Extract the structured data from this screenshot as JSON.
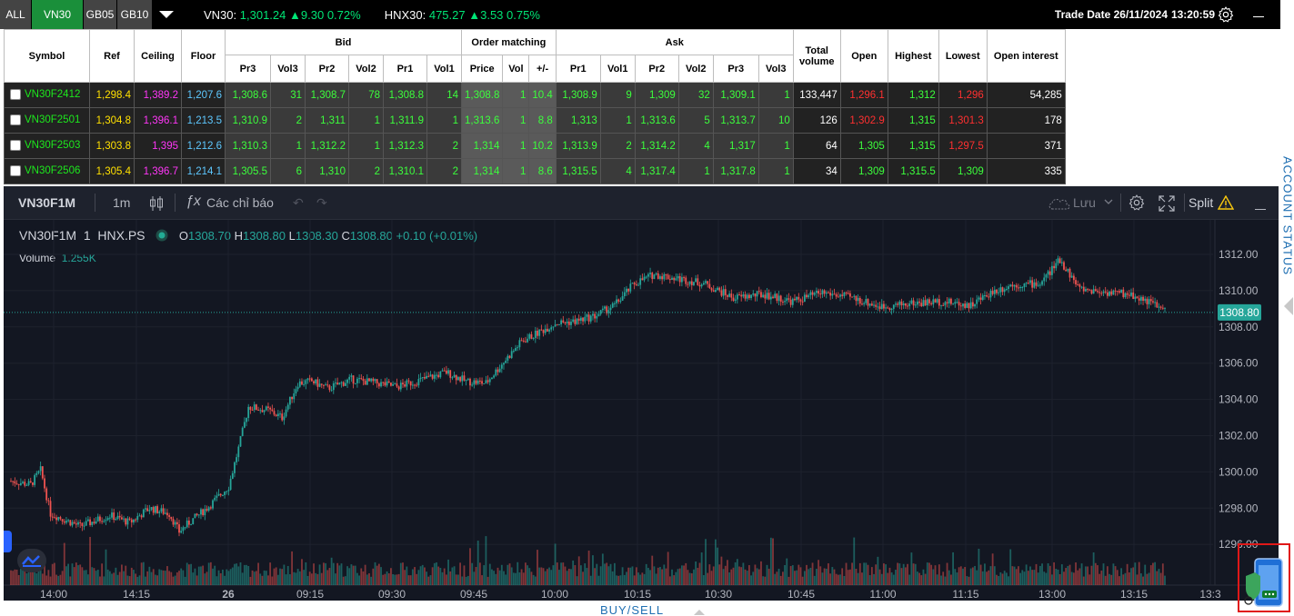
{
  "topbar": {
    "tabs": [
      {
        "label": "ALL"
      },
      {
        "label": "VN30"
      },
      {
        "label": "GB05"
      },
      {
        "label": "GB10"
      }
    ],
    "active_tab": "VN30",
    "vn30": {
      "label": "VN30:",
      "value": "1,301.24",
      "change": "9.30",
      "pct": "0.72%"
    },
    "hnx30": {
      "label": "HNX30:",
      "value": "475.27",
      "change": "3.53",
      "pct": "0.75%"
    },
    "trade_date": "Trade Date 26/11/2024",
    "time": "13:20:59"
  },
  "board": {
    "headers": {
      "symbol": "Symbol",
      "ref": "Ref",
      "ceiling": "Ceiling",
      "floor": "Floor",
      "bid": "Bid",
      "order_matching": "Order matching",
      "ask": "Ask",
      "total_volume": "Total volume",
      "open": "Open",
      "highest": "Highest",
      "lowest": "Lowest",
      "open_interest": "Open interest"
    },
    "sub_headers": {
      "bid": [
        "Pr3",
        "Vol3",
        "Pr2",
        "Vol2",
        "Pr1",
        "Vol1"
      ],
      "match": [
        "Price",
        "Vol",
        "+/-"
      ],
      "ask": [
        "Pr1",
        "Vol1",
        "Pr2",
        "Vol2",
        "Pr3",
        "Vol3"
      ]
    },
    "rows": [
      [
        "VN30F2412",
        "1,298.4",
        "1,389.2",
        "1,207.6",
        "1,308.6",
        "31",
        "1,308.7",
        "78",
        "1,308.8",
        "14",
        "1,308.8",
        "1",
        "10.4",
        "1,308.9",
        "9",
        "1,309",
        "32",
        "1,309.1",
        "1",
        "133,447",
        "1,296.1",
        "1,312",
        "1,296",
        "54,285"
      ],
      [
        "VN30F2501",
        "1,304.8",
        "1,396.1",
        "1,213.5",
        "1,310.9",
        "2",
        "1,311",
        "1",
        "1,311.9",
        "1",
        "1,313.6",
        "1",
        "8.8",
        "1,313",
        "1",
        "1,313.6",
        "5",
        "1,313.7",
        "10",
        "126",
        "1,302.9",
        "1,315",
        "1,301.3",
        "178"
      ],
      [
        "VN30F2503",
        "1,303.8",
        "1,395",
        "1,212.6",
        "1,310.3",
        "1",
        "1,312.2",
        "1",
        "1,312.3",
        "2",
        "1,314",
        "1",
        "10.2",
        "1,313.9",
        "2",
        "1,314.2",
        "4",
        "1,317",
        "1",
        "64",
        "1,305",
        "1,315",
        "1,297.5",
        "371"
      ],
      [
        "VN30F2506",
        "1,305.4",
        "1,396.7",
        "1,214.1",
        "1,305.5",
        "6",
        "1,310",
        "2",
        "1,310.1",
        "2",
        "1,314",
        "1",
        "8.6",
        "1,315.5",
        "4",
        "1,317.4",
        "1",
        "1,317.8",
        "1",
        "34",
        "1,309",
        "1,315.5",
        "1,309",
        "335"
      ]
    ]
  },
  "chart_toolbar": {
    "symbol": "VN30F1M",
    "interval": "1m",
    "indicators": "Các chỉ báo",
    "save": "Lưu",
    "split": "Split"
  },
  "legend": {
    "symbol": "VN30F1M",
    "interval": "1",
    "exchange": "HNX.PS",
    "o_label": "O",
    "o": "1308.70",
    "h_label": "H",
    "h": "1308.80",
    "l_label": "L",
    "l": "1308.30",
    "c_label": "C",
    "c": "1308.80",
    "change": "+0.10 (+0.01%)",
    "volume_label": "Volume",
    "volume": "1.255K"
  },
  "side": {
    "account_status": "ACCOUNT STATUS",
    "buy_sell": "BUY/SELL"
  },
  "colors": {
    "up": "#26a69a",
    "down": "#ef5350",
    "bg": "#131722"
  },
  "chart_data": {
    "type": "candlestick",
    "x_ticks": [
      "14:00",
      "14:15",
      "26",
      "09:15",
      "09:30",
      "09:45",
      "10:00",
      "10:15",
      "10:30",
      "10:45",
      "11:00",
      "11:15",
      "13:00",
      "13:15",
      "13:3"
    ],
    "y_ticks": [
      1312.0,
      1310.0,
      1308.0,
      1306.0,
      1304.0,
      1302.0,
      1300.0,
      1298.0,
      1296.0
    ],
    "last_price": "1308.80",
    "close_path": [
      [
        0,
        1299.5
      ],
      [
        10,
        1299.3
      ],
      [
        15,
        1300.1
      ],
      [
        20,
        1297.7
      ],
      [
        35,
        1297.0
      ],
      [
        50,
        1297.6
      ],
      [
        60,
        1297.2
      ],
      [
        70,
        1298.0
      ],
      [
        80,
        1297.7
      ],
      [
        85,
        1296.7
      ],
      [
        90,
        1297.2
      ],
      [
        100,
        1298.1
      ],
      [
        110,
        1299.2
      ],
      [
        115,
        1301.3
      ],
      [
        120,
        1303.6
      ],
      [
        130,
        1303.4
      ],
      [
        137,
        1303.0
      ],
      [
        145,
        1304.9
      ],
      [
        152,
        1305.0
      ],
      [
        160,
        1304.6
      ],
      [
        172,
        1305.1
      ],
      [
        185,
        1304.9
      ],
      [
        195,
        1304.7
      ],
      [
        205,
        1305.0
      ],
      [
        220,
        1305.5
      ],
      [
        230,
        1305.0
      ],
      [
        240,
        1304.9
      ],
      [
        250,
        1306.2
      ],
      [
        258,
        1307.2
      ],
      [
        265,
        1307.6
      ],
      [
        275,
        1308.2
      ],
      [
        285,
        1308.3
      ],
      [
        295,
        1308.6
      ],
      [
        305,
        1309.2
      ],
      [
        315,
        1310.4
      ],
      [
        325,
        1310.9
      ],
      [
        335,
        1310.7
      ],
      [
        350,
        1310.4
      ],
      [
        365,
        1309.6
      ],
      [
        380,
        1309.8
      ],
      [
        395,
        1309.4
      ],
      [
        410,
        1309.9
      ],
      [
        425,
        1309.6
      ],
      [
        440,
        1309.1
      ],
      [
        455,
        1309.3
      ],
      [
        470,
        1309.4
      ],
      [
        485,
        1309.2
      ],
      [
        495,
        1309.9
      ],
      [
        505,
        1310.3
      ],
      [
        520,
        1310.4
      ],
      [
        530,
        1311.7
      ],
      [
        540,
        1310.1
      ],
      [
        555,
        1309.9
      ],
      [
        565,
        1309.8
      ],
      [
        575,
        1309.4
      ],
      [
        583,
        1308.9
      ]
    ],
    "volume_max": "1.255K"
  }
}
